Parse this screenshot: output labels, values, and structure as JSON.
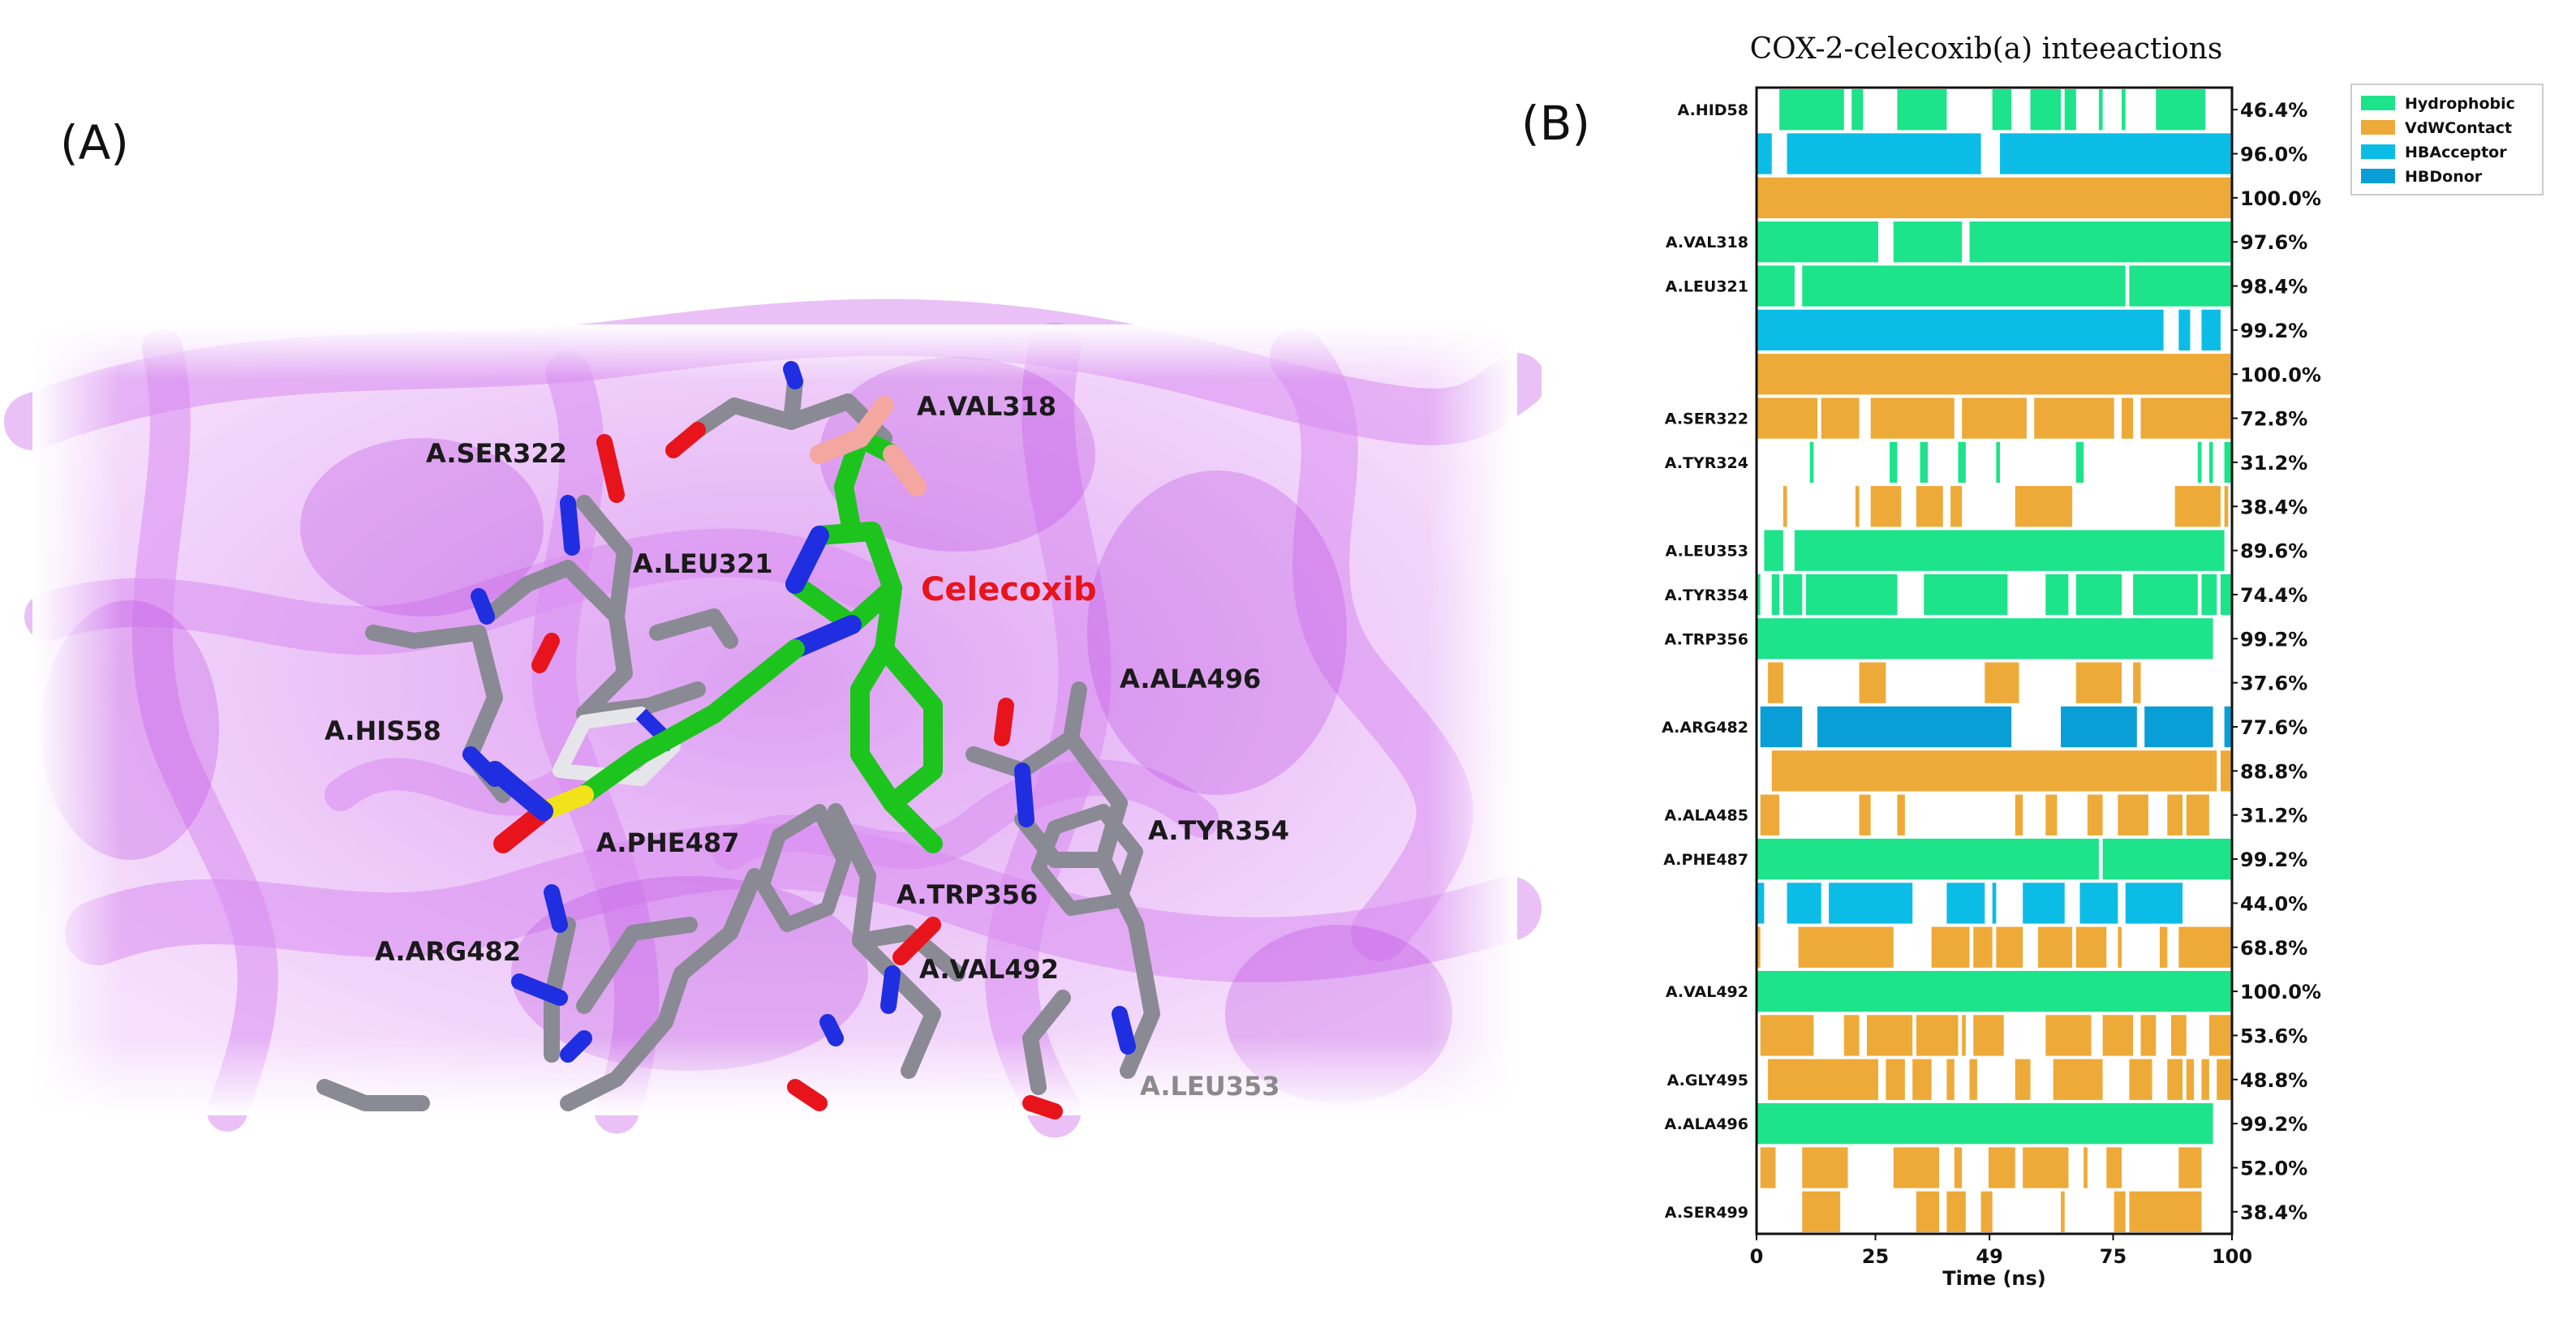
{
  "panel_a": {
    "letter": "(A)",
    "ligand_label": "Celecoxib",
    "residues": [
      {
        "id": "val318",
        "label": "A.VAL318"
      },
      {
        "id": "ser322",
        "label": "A.SER322"
      },
      {
        "id": "leu321",
        "label": "A.LEU321"
      },
      {
        "id": "ala496",
        "label": "A.ALA496"
      },
      {
        "id": "his58",
        "label": "A.HIS58"
      },
      {
        "id": "tyr354",
        "label": "A.TYR354"
      },
      {
        "id": "phe487",
        "label": "A.PHE487"
      },
      {
        "id": "trp356",
        "label": "A.TRP356"
      },
      {
        "id": "arg482",
        "label": "A.ARG482"
      },
      {
        "id": "val492",
        "label": "A.VAL492"
      },
      {
        "id": "leu353",
        "label": "A.LEU353"
      }
    ],
    "colors": {
      "protein": "#d98cf0",
      "carbon_residue": "#8a8a94",
      "carbon_ligand": "#1ec41e",
      "oxygen": "#e8141c",
      "nitrogen": "#1f2ee0",
      "sulfur": "#f2e21a",
      "fluorine": "#f4a6a0"
    }
  },
  "panel_b": {
    "letter": "(B)",
    "chart_data": {
      "type": "heatmap",
      "title": "COX-2-celecoxib(a) inteeactions",
      "xlabel": "Time (ns)",
      "ylabel": "",
      "xlim": [
        0,
        100
      ],
      "xticks": [
        "0",
        "25",
        "49",
        "75",
        "100"
      ],
      "legend": {
        "placement": "top-right",
        "entries": [
          {
            "name": "Hydrophobic",
            "color": "#1de38a"
          },
          {
            "name": "VdWContact",
            "color": "#eeaa38"
          },
          {
            "name": "HBAcceptor",
            "color": "#0bbde6"
          },
          {
            "name": "HBDonor",
            "color": "#0a9ed6"
          }
        ]
      },
      "rows": [
        {
          "residue": "A.HID58",
          "type": "Hydrophobic",
          "occupancy": "46.4%"
        },
        {
          "residue": "",
          "type": "HBAcceptor",
          "occupancy": "96.0%"
        },
        {
          "residue": "",
          "type": "VdWContact",
          "occupancy": "100.0%"
        },
        {
          "residue": "A.VAL318",
          "type": "Hydrophobic",
          "occupancy": "97.6%"
        },
        {
          "residue": "A.LEU321",
          "type": "Hydrophobic",
          "occupancy": "98.4%"
        },
        {
          "residue": "",
          "type": "HBAcceptor",
          "occupancy": "99.2%"
        },
        {
          "residue": "",
          "type": "VdWContact",
          "occupancy": "100.0%"
        },
        {
          "residue": "A.SER322",
          "type": "VdWContact",
          "occupancy": "72.8%"
        },
        {
          "residue": "A.TYR324",
          "type": "Hydrophobic",
          "occupancy": "31.2%"
        },
        {
          "residue": "",
          "type": "VdWContact",
          "occupancy": "38.4%"
        },
        {
          "residue": "A.LEU353",
          "type": "Hydrophobic",
          "occupancy": "89.6%"
        },
        {
          "residue": "A.TYR354",
          "type": "Hydrophobic",
          "occupancy": "74.4%"
        },
        {
          "residue": "A.TRP356",
          "type": "Hydrophobic",
          "occupancy": "99.2%"
        },
        {
          "residue": "",
          "type": "VdWContact",
          "occupancy": "37.6%"
        },
        {
          "residue": "A.ARG482",
          "type": "HBDonor",
          "occupancy": "77.6%"
        },
        {
          "residue": "",
          "type": "VdWContact",
          "occupancy": "88.8%"
        },
        {
          "residue": "A.ALA485",
          "type": "VdWContact",
          "occupancy": "31.2%"
        },
        {
          "residue": "A.PHE487",
          "type": "Hydrophobic",
          "occupancy": "99.2%"
        },
        {
          "residue": "",
          "type": "HBAcceptor",
          "occupancy": "44.0%"
        },
        {
          "residue": "",
          "type": "VdWContact",
          "occupancy": "68.8%"
        },
        {
          "residue": "A.VAL492",
          "type": "Hydrophobic",
          "occupancy": "100.0%"
        },
        {
          "residue": "",
          "type": "VdWContact",
          "occupancy": "53.6%"
        },
        {
          "residue": "A.GLY495",
          "type": "VdWContact",
          "occupancy": "48.8%"
        },
        {
          "residue": "A.ALA496",
          "type": "Hydrophobic",
          "occupancy": "99.2%"
        },
        {
          "residue": "",
          "type": "VdWContact",
          "occupancy": "52.0%"
        },
        {
          "residue": "A.SER499",
          "type": "VdWContact",
          "occupancy": "38.4%"
        }
      ]
    }
  }
}
